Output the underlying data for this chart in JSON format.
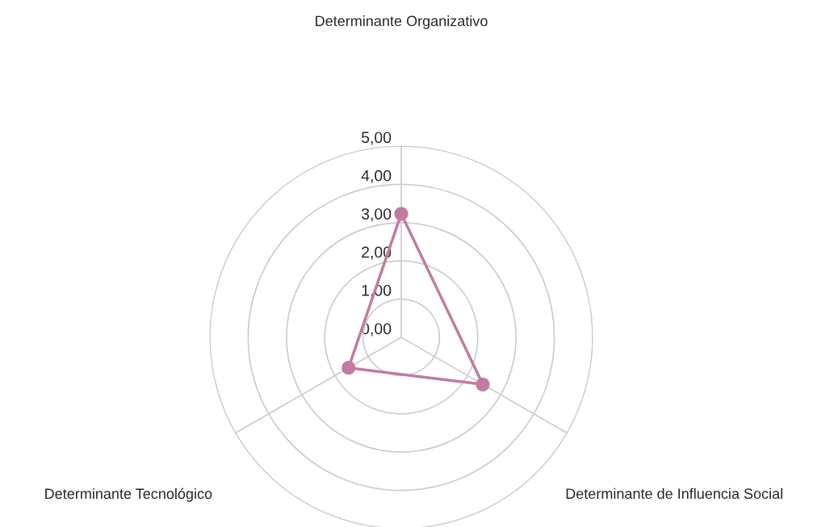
{
  "chart_data": {
    "type": "radar",
    "categories": [
      "Determinante Organizativo",
      "Determinante de Influencia Social",
      "Determinante Tecnológico"
    ],
    "series": [
      {
        "color": "#c27ba0",
        "values": [
          3.23,
          2.46,
          1.59
        ]
      }
    ],
    "ylim": [
      0,
      5
    ],
    "yticks": [
      {
        "value": 0,
        "label": "0,00"
      },
      {
        "value": 1,
        "label": "1,00"
      },
      {
        "value": 2,
        "label": "2,00"
      },
      {
        "value": 3,
        "label": "3,00"
      },
      {
        "value": 4,
        "label": "4,00"
      },
      {
        "value": 5,
        "label": "5,00"
      }
    ],
    "grid": true,
    "marker": "circle"
  }
}
